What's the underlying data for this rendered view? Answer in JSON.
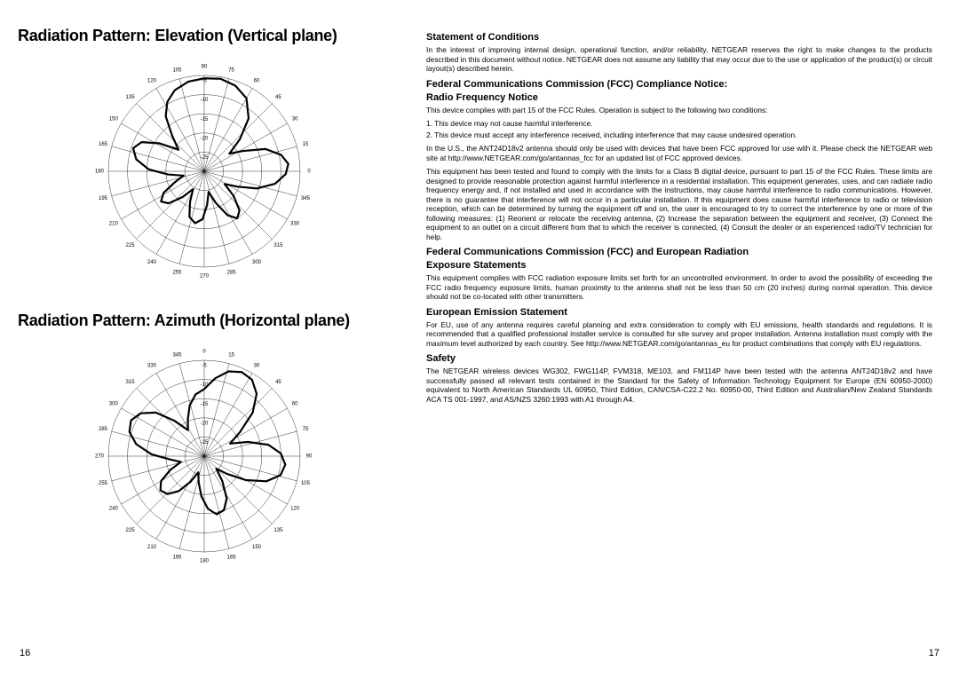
{
  "left": {
    "title1": "Radiation Pattern: Elevation (Vertical plane)",
    "title2": "Radiation Pattern: Azimuth (Horizontal plane)"
  },
  "elevation_chart": {
    "type": "polar",
    "size": 260,
    "rings": 5,
    "ring_labels": [
      "-5",
      "-10",
      "-15",
      "-20",
      "-25"
    ],
    "angle_step": 15,
    "angle_offset_top": 90,
    "angle_labels": [
      90,
      75,
      60,
      45,
      30,
      15,
      0,
      345,
      330,
      315,
      300,
      285,
      270,
      255,
      240,
      225,
      210,
      195,
      180,
      165,
      150,
      135,
      120,
      105
    ],
    "grid_color": "#000000",
    "grid_stroke": 0.4,
    "pattern_color": "#000000",
    "pattern_stroke": 2.2,
    "pattern_points_deg_r": [
      [
        0,
        0.97
      ],
      [
        10,
        0.98
      ],
      [
        20,
        0.95
      ],
      [
        30,
        0.88
      ],
      [
        40,
        0.72
      ],
      [
        48,
        0.5
      ],
      [
        55,
        0.32
      ],
      [
        62,
        0.45
      ],
      [
        70,
        0.68
      ],
      [
        78,
        0.82
      ],
      [
        85,
        0.88
      ],
      [
        92,
        0.85
      ],
      [
        100,
        0.75
      ],
      [
        108,
        0.58
      ],
      [
        115,
        0.38
      ],
      [
        122,
        0.25
      ],
      [
        130,
        0.4
      ],
      [
        138,
        0.55
      ],
      [
        145,
        0.6
      ],
      [
        152,
        0.52
      ],
      [
        160,
        0.35
      ],
      [
        168,
        0.22
      ],
      [
        175,
        0.35
      ],
      [
        182,
        0.5
      ],
      [
        190,
        0.55
      ],
      [
        198,
        0.5
      ],
      [
        205,
        0.35
      ],
      [
        212,
        0.22
      ],
      [
        220,
        0.35
      ],
      [
        228,
        0.5
      ],
      [
        235,
        0.55
      ],
      [
        242,
        0.48
      ],
      [
        250,
        0.32
      ],
      [
        258,
        0.22
      ],
      [
        265,
        0.38
      ],
      [
        272,
        0.58
      ],
      [
        280,
        0.72
      ],
      [
        288,
        0.78
      ],
      [
        295,
        0.72
      ],
      [
        302,
        0.55
      ],
      [
        310,
        0.35
      ],
      [
        318,
        0.5
      ],
      [
        325,
        0.7
      ],
      [
        332,
        0.82
      ],
      [
        340,
        0.9
      ],
      [
        350,
        0.95
      ]
    ]
  },
  "azimuth_chart": {
    "type": "polar",
    "size": 260,
    "rings": 5,
    "ring_labels": [
      "-5",
      "-10",
      "-15",
      "-20",
      "-25"
    ],
    "angle_step": 15,
    "angle_offset_top": 0,
    "angle_labels": [
      0,
      15,
      30,
      45,
      60,
      75,
      90,
      105,
      120,
      135,
      150,
      165,
      180,
      195,
      210,
      225,
      240,
      255,
      270,
      285,
      300,
      315,
      330,
      345
    ],
    "grid_color": "#000000",
    "grid_stroke": 0.4,
    "pattern_color": "#000000",
    "pattern_stroke": 2.2,
    "pattern_points_deg_r": [
      [
        0,
        0.7
      ],
      [
        8,
        0.82
      ],
      [
        16,
        0.92
      ],
      [
        24,
        0.96
      ],
      [
        32,
        0.94
      ],
      [
        40,
        0.85
      ],
      [
        48,
        0.68
      ],
      [
        56,
        0.45
      ],
      [
        64,
        0.3
      ],
      [
        72,
        0.48
      ],
      [
        80,
        0.68
      ],
      [
        88,
        0.8
      ],
      [
        96,
        0.85
      ],
      [
        104,
        0.82
      ],
      [
        112,
        0.7
      ],
      [
        120,
        0.5
      ],
      [
        128,
        0.3
      ],
      [
        136,
        0.18
      ],
      [
        144,
        0.32
      ],
      [
        152,
        0.5
      ],
      [
        160,
        0.6
      ],
      [
        168,
        0.62
      ],
      [
        176,
        0.55
      ],
      [
        184,
        0.42
      ],
      [
        192,
        0.28
      ],
      [
        200,
        0.18
      ],
      [
        208,
        0.3
      ],
      [
        216,
        0.45
      ],
      [
        224,
        0.55
      ],
      [
        232,
        0.58
      ],
      [
        240,
        0.52
      ],
      [
        248,
        0.38
      ],
      [
        256,
        0.25
      ],
      [
        264,
        0.35
      ],
      [
        272,
        0.55
      ],
      [
        280,
        0.72
      ],
      [
        288,
        0.82
      ],
      [
        296,
        0.85
      ],
      [
        304,
        0.8
      ],
      [
        312,
        0.68
      ],
      [
        320,
        0.48
      ],
      [
        328,
        0.32
      ],
      [
        336,
        0.42
      ],
      [
        344,
        0.55
      ],
      [
        352,
        0.65
      ]
    ]
  },
  "right": {
    "h1": "Statement of Conditions",
    "p1": "In the interest of improving internal design, operational function, and/or reliability, NETGEAR reserves the right to make changes to the products described in this document without notice. NETGEAR does not assume any liability that may occur due to the use or application of the product(s) or circuit layout(s) described herein.",
    "h2a": "Federal Communications Commission (FCC) Compliance Notice:",
    "h2b": "Radio Frequency Notice",
    "p2": "This device complies with part 15 of the FCC Rules. Operation is subject to the following two conditions:",
    "li1": "1. This device may not cause harmful interference.",
    "li2": "2. This device must accept any interference received, including interference that may cause undesired operation.",
    "p3": "In the U.S., the ANT24D18v2 antenna should only be used with devices that have been FCC approved for use with it. Please check the NETGEAR web site at http://www.NETGEAR.com/go/antannas_fcc for an updated list of FCC approved devices.",
    "p4": "This equipment has been tested and found to comply with the limits for a Class B digital device, pursuant to part 15 of the FCC Rules. These limits are designed to provide reasonable protection against harmful interference in a residential installation. This equipment generates, uses, and can radiate radio frequency energy and, if not installed and used in accordance with the instructions, may cause harmful interference to radio communications. However, there is no guarantee that interference will not occur in a particular installation. If this equipment does cause harmful interference to radio or television reception, which can be determined by turning the equipment off and on, the user is encouraged to try to correct the interference by one or more of the following measures: (1) Reorient or relocate the receiving antenna, (2) Increase the separation between the equipment and receiver, (3) Connect the equipment to an outlet on a circuit different from that to which the receiver is connected, (4) Consult the dealer or an experienced radio/TV technician for help.",
    "h3a": "Federal Communications Commission (FCC) and European Radiation",
    "h3b": "Exposure Statements",
    "p5": "This equipment complies with FCC radiation exposure limits set forth for an uncontrolled environment. In order to avoid the possibility of exceeding the FCC radio frequency exposure limits, human proximity to the antenna shall not be less than 50 cm (20 inches) during normal operation. This device should not be co-located with other transmitters.",
    "h4": "European Emission Statement",
    "p6": "For EU, use of any antenna requires careful planning and extra consideration to comply with EU emissions, health standards and regulations. It is recommended that a qualified professional installer service is consulted for site survey and proper installation. Antenna installation must comply with the maximum level authorized by each country. See http://www.NETGEAR.com/go/antannas_eu for product combinations that comply with EU regulations.",
    "h5": "Safety",
    "p7": "The NETGEAR wireless devices WG302, FWG114P, FVM318, ME103, and FM114P have been tested with the antenna ANT24D18v2 and have successfully passed all relevant tests contained in the Standard for the Safety of Information Technology Equipment for Europe (EN 60950-2000) equivalent to North American Standards UL 60950, Third Edition, CAN/CSA-C22.2 No. 60950-00, Third Edition and Australian/New Zealand Standards ACA TS 001-1997, and AS/NZS 3260:1993 with A1 through A4."
  },
  "page_left": "16",
  "page_right": "17"
}
